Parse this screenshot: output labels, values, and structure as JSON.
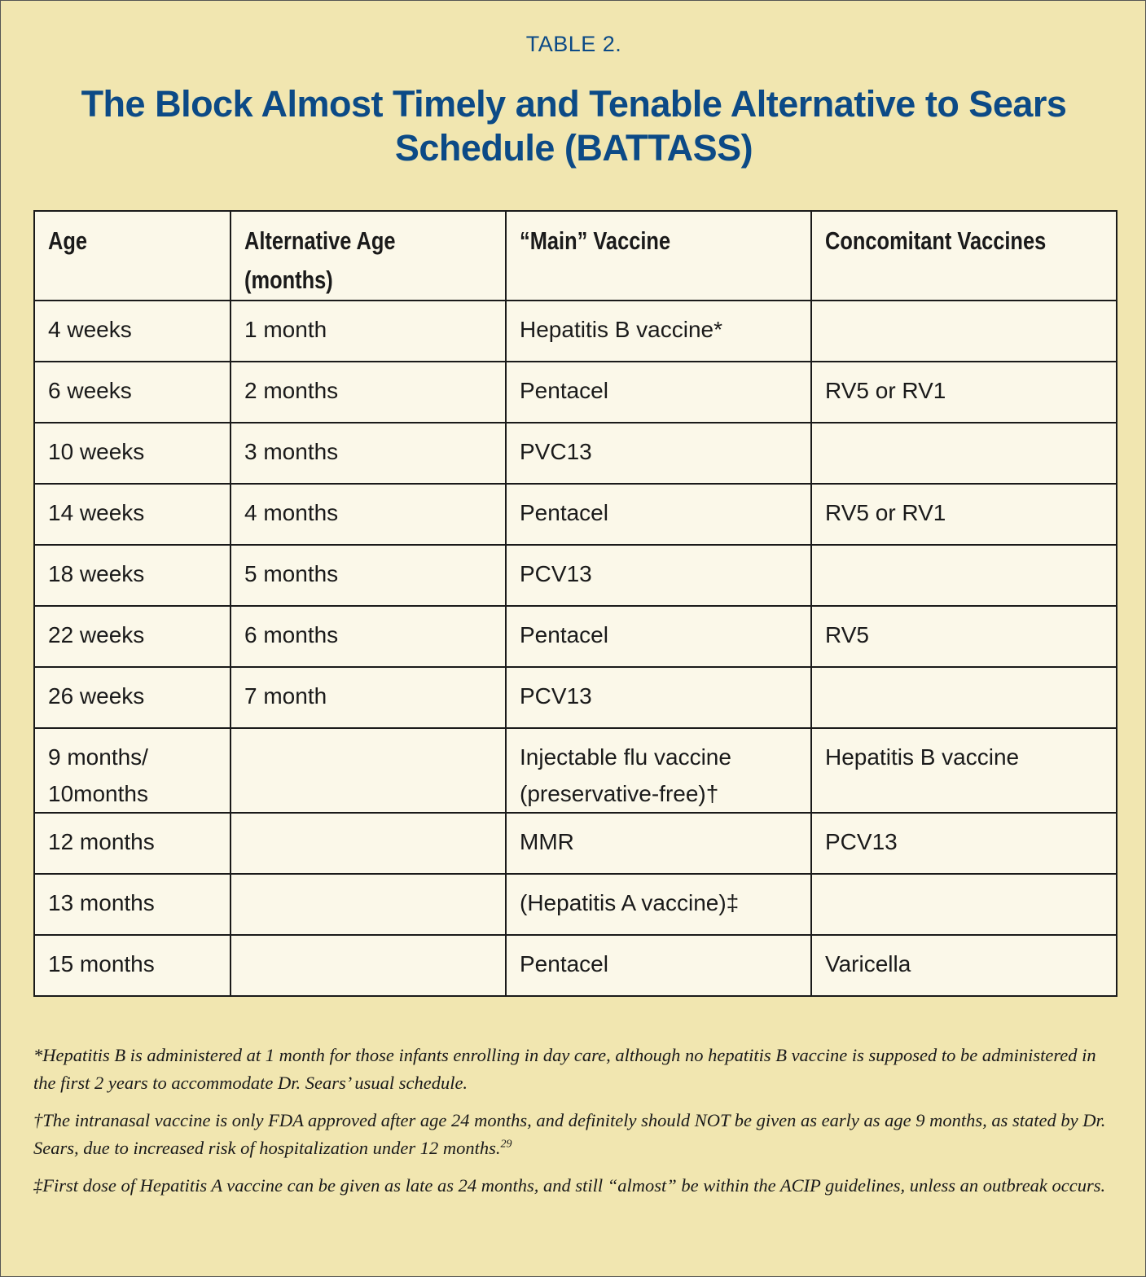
{
  "label": "TABLE 2.",
  "title": "The Block Almost Timely and Tenable Alternative to Sears Schedule (BATTASS)",
  "table": {
    "headers": [
      "Age",
      "Alternative Age (months)",
      "“Main” Vaccine",
      "Concomitant Vaccines"
    ],
    "rows": [
      [
        "4 weeks",
        "1 month",
        "Hepatitis B vaccine*",
        ""
      ],
      [
        "6 weeks",
        "2 months",
        "Pentacel",
        "RV5 or RV1"
      ],
      [
        "10 weeks",
        "3 months",
        "PVC13",
        ""
      ],
      [
        "14 weeks",
        "4 months",
        "Pentacel",
        "RV5 or RV1"
      ],
      [
        "18 weeks",
        "5 months",
        "PCV13",
        ""
      ],
      [
        "22 weeks",
        "6 months",
        "Pentacel",
        "RV5"
      ],
      [
        "26 weeks",
        "7 month",
        "PCV13",
        ""
      ],
      [
        "9 months/ 10months",
        "",
        "Injectable flu vaccine (preservative-free)†",
        "Hepatitis B vaccine"
      ],
      [
        "12 months",
        "",
        "MMR",
        "PCV13"
      ],
      [
        "13 months",
        "",
        "(Hepatitis A vaccine)‡",
        ""
      ],
      [
        "15 months",
        "",
        "Pentacel",
        "Varicella"
      ]
    ]
  },
  "notes": [
    {
      "text": "*Hepatitis B is administered at 1 month for those infants enrolling in day care, although no hepatitis B vaccine is supposed to be administered in the first 2 years to accommodate Dr. Sears’ usual schedule.",
      "sup": ""
    },
    {
      "text": "†The intranasal vaccine is only FDA approved after age 24 months, and definitely should NOT be given as early as age 9 months, as stated by Dr. Sears, due to increased risk of hospitalization under 12 months.",
      "sup": "29"
    },
    {
      "text": "‡First dose of Hepatitis A vaccine can be given as late as 24 months, and still “almost” be within the ACIP guidelines, unless an outbreak occurs.",
      "sup": ""
    }
  ]
}
